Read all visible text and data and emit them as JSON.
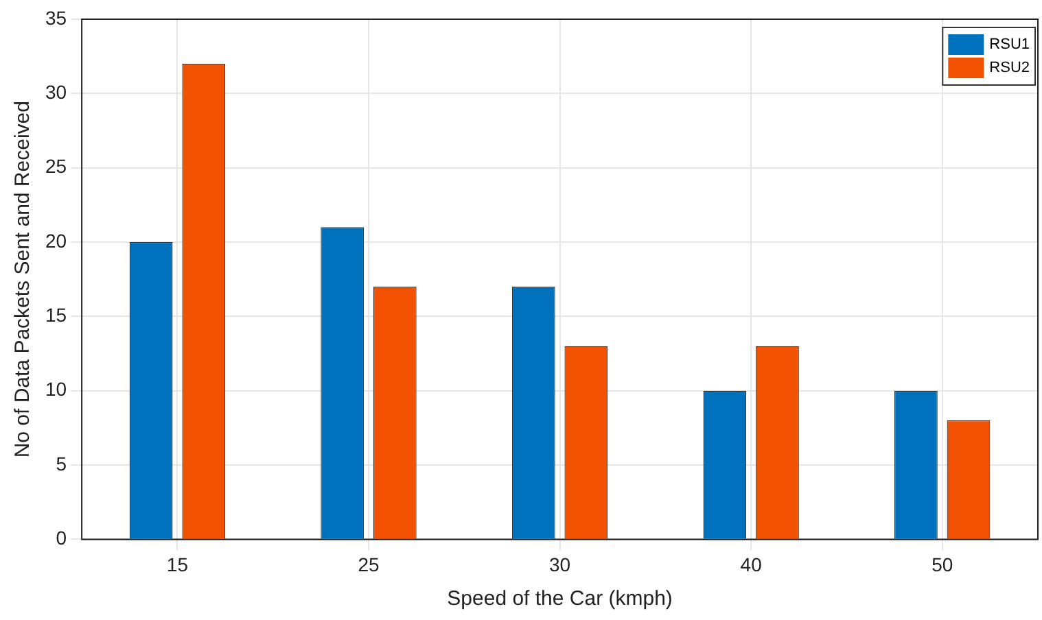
{
  "chart_data": {
    "type": "bar",
    "xlabel": "Speed of the Car (kmph)",
    "ylabel": "No of Data Packets Sent and Received",
    "categories": [
      "15",
      "25",
      "30",
      "40",
      "50"
    ],
    "series": [
      {
        "name": "RSU1",
        "color": "#0072bd",
        "values": [
          20,
          21,
          17,
          10,
          10
        ]
      },
      {
        "name": "RSU2",
        "color": "#f25100",
        "values": [
          32,
          17,
          13,
          13,
          8
        ]
      }
    ],
    "ylim": [
      0,
      35
    ],
    "yticks": [
      0,
      5,
      10,
      15,
      20,
      25,
      30,
      35
    ],
    "grid": true,
    "legend": "top right"
  }
}
